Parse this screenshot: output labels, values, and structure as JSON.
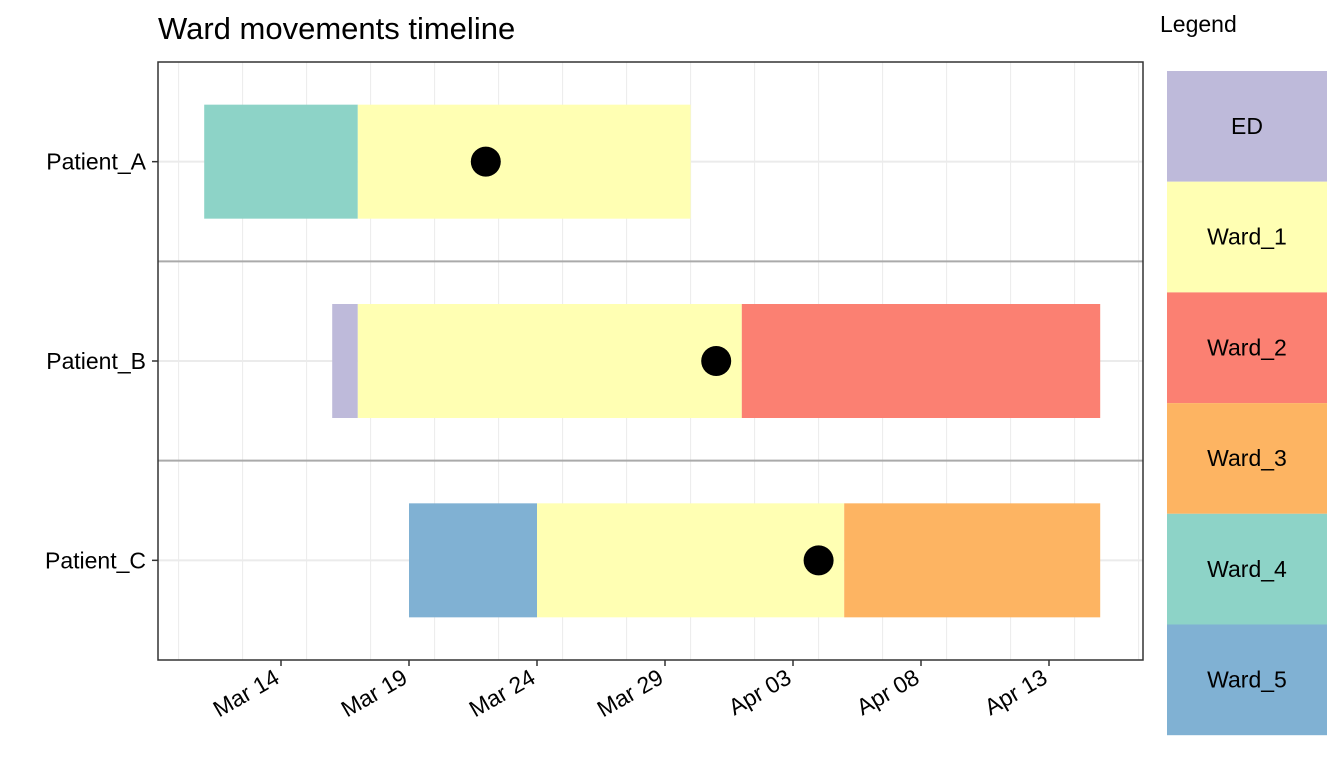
{
  "chart_data": {
    "type": "timeline",
    "title": "Ward movements timeline",
    "xlabel": "",
    "ylabel": "",
    "xlim": [
      "2024-03-09",
      "2024-04-17"
    ],
    "x_ticks": [
      {
        "date": "2024-03-14",
        "label": "Mar 14"
      },
      {
        "date": "2024-03-19",
        "label": "Mar 19"
      },
      {
        "date": "2024-03-24",
        "label": "Mar 24"
      },
      {
        "date": "2024-03-29",
        "label": "Mar 29"
      },
      {
        "date": "2024-04-03",
        "label": "Apr 03"
      },
      {
        "date": "2024-04-08",
        "label": "Apr 08"
      },
      {
        "date": "2024-04-13",
        "label": "Apr 13"
      }
    ],
    "grid": true,
    "legend": {
      "title": "Legend",
      "placement": "right",
      "entries": [
        {
          "label": "ED",
          "color": "#BEBADA"
        },
        {
          "label": "Ward_1",
          "color": "#FFFFB3"
        },
        {
          "label": "Ward_2",
          "color": "#FB8072"
        },
        {
          "label": "Ward_3",
          "color": "#FDB462"
        },
        {
          "label": "Ward_4",
          "color": "#8DD3C7"
        },
        {
          "label": "Ward_5",
          "color": "#80B1D3"
        }
      ]
    },
    "patients": [
      {
        "name": "Patient_A",
        "event": "2024-03-22",
        "stays": [
          {
            "ward": "Ward_4",
            "start": "2024-03-11",
            "end": "2024-03-17"
          },
          {
            "ward": "Ward_1",
            "start": "2024-03-17",
            "end": "2024-03-30"
          }
        ]
      },
      {
        "name": "Patient_B",
        "event": "2024-03-31",
        "stays": [
          {
            "ward": "ED",
            "start": "2024-03-16",
            "end": "2024-03-17"
          },
          {
            "ward": "Ward_1",
            "start": "2024-03-17",
            "end": "2024-04-01"
          },
          {
            "ward": "Ward_2",
            "start": "2024-04-01",
            "end": "2024-04-15"
          }
        ]
      },
      {
        "name": "Patient_C",
        "event": "2024-04-04",
        "stays": [
          {
            "ward": "Ward_5",
            "start": "2024-03-19",
            "end": "2024-03-24"
          },
          {
            "ward": "Ward_1",
            "start": "2024-03-24",
            "end": "2024-04-05"
          },
          {
            "ward": "Ward_3",
            "start": "2024-04-05",
            "end": "2024-04-15"
          }
        ]
      }
    ]
  }
}
